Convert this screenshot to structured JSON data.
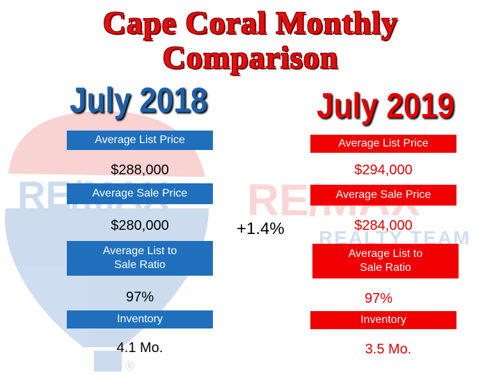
{
  "title_line1": "Cape Coral Monthly",
  "title_line2": "Comparison",
  "watermark": {
    "brand": "RE/MAX",
    "subtext": "REALTY TEAM",
    "registered": "®"
  },
  "change": "+1.4%",
  "colors": {
    "title_red": "#e01010",
    "blue_panel": "#1f6fbd",
    "red_panel": "#f00000",
    "year_blue": "#1f5fa8",
    "year_red": "#e00000"
  },
  "left": {
    "year": "July 2018",
    "list_label": "Average List Price",
    "list_value": "$288,000",
    "sale_label": "Average Sale Price",
    "sale_value": "$280,000",
    "ratio_label_1": "Average List to",
    "ratio_label_2": "Sale Ratio",
    "ratio_value": "97%",
    "inventory_label": "Inventory",
    "inventory_value": "4.1 Mo."
  },
  "right": {
    "year": "July 2019",
    "list_label": "Average List Price",
    "list_value": "$294,000",
    "sale_label": "Average Sale Price",
    "sale_value": "$284,000",
    "ratio_label_1": "Average List to",
    "ratio_label_2": "Sale Ratio",
    "ratio_value": "97%",
    "inventory_label": "Inventory",
    "inventory_value": "3.5 Mo."
  }
}
